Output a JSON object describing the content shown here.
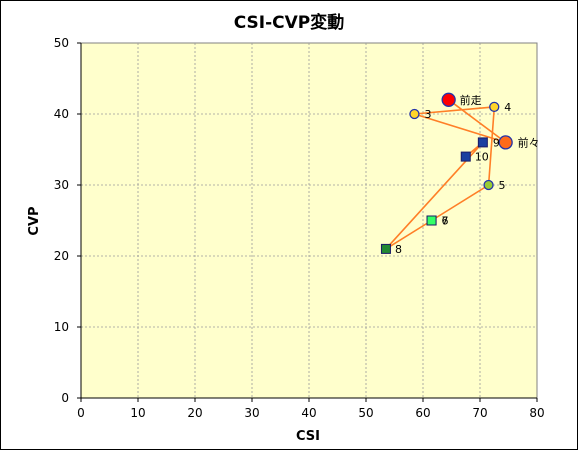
{
  "chart_data": {
    "type": "scatter",
    "title": "CSI-CVP変動",
    "xlabel": "CSI",
    "ylabel": "CVP",
    "xlim": [
      0,
      80
    ],
    "ylim": [
      0,
      50
    ],
    "xticks": [
      0,
      10,
      20,
      30,
      40,
      50,
      60,
      70,
      80
    ],
    "yticks": [
      0,
      10,
      20,
      30,
      40,
      50
    ],
    "grid": true,
    "legend": "none",
    "path_order": [
      "前走",
      "前々",
      "3",
      "4",
      "5",
      "6",
      "7",
      "8",
      "9",
      "10"
    ],
    "points": [
      {
        "label": "前走",
        "x": 64.5,
        "y": 42,
        "marker": "circle-large",
        "color": "#ff0000"
      },
      {
        "label": "前々",
        "x": 74.5,
        "y": 36,
        "marker": "circle-large",
        "color": "#ff6a1a"
      },
      {
        "label": "3",
        "x": 58.5,
        "y": 40,
        "marker": "circle",
        "color": "#ffd42a"
      },
      {
        "label": "4",
        "x": 72.5,
        "y": 41,
        "marker": "circle",
        "color": "#ffd42a"
      },
      {
        "label": "5",
        "x": 71.5,
        "y": 30,
        "marker": "circle",
        "color": "#99cc33"
      },
      {
        "label": "6",
        "x": 61.5,
        "y": 25,
        "marker": "square",
        "color": "#33ff66"
      },
      {
        "label": "7",
        "x": 61.5,
        "y": 25,
        "marker": "square",
        "color": "#33ff66"
      },
      {
        "label": "8",
        "x": 53.5,
        "y": 21,
        "marker": "square",
        "color": "#228833"
      },
      {
        "label": "9",
        "x": 70.5,
        "y": 36,
        "marker": "square",
        "color": "#1a3fa0"
      },
      {
        "label": "10",
        "x": 67.5,
        "y": 34,
        "marker": "square",
        "color": "#1a3fa0"
      }
    ],
    "line_color": "#ff7f27",
    "plot_bg": "#ffffcc"
  }
}
